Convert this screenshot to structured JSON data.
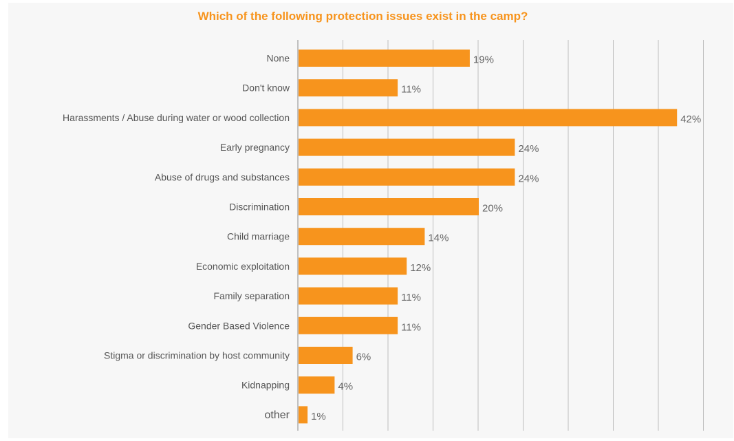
{
  "chart_data": {
    "type": "bar",
    "orientation": "horizontal",
    "title": "Which of the following protection issues exist in the camp?",
    "xlabel": "",
    "ylabel": "",
    "xlim": [
      0,
      45
    ],
    "grid": true,
    "bar_color": "#f7941d",
    "categories": [
      "None",
      "Don't know",
      "Harassments / Abuse during water or wood collection",
      "Early pregnancy",
      "Abuse of drugs and substances",
      "Discrimination",
      "Child marriage",
      "Economic exploitation",
      "Family separation",
      "Gender Based Violence",
      "Stigma or discrimination by host community",
      "Kidnapping",
      "other"
    ],
    "values": [
      19,
      11,
      42,
      24,
      24,
      20,
      14,
      12,
      11,
      11,
      6,
      4,
      1
    ],
    "value_labels": [
      "19%",
      "11%",
      "42%",
      "24%",
      "24%",
      "20%",
      "14%",
      "12%",
      "11%",
      "11%",
      "6%",
      "4%",
      "1%"
    ]
  }
}
